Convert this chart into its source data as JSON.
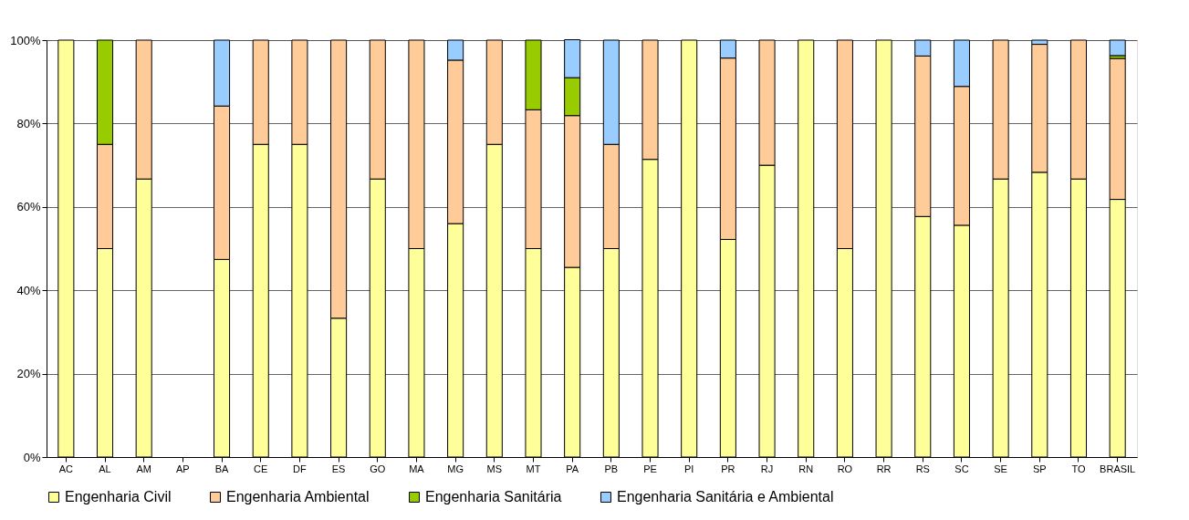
{
  "chart_data": {
    "type": "bar",
    "stacked": true,
    "categories": [
      "AC",
      "AL",
      "AM",
      "AP",
      "BA",
      "CE",
      "DF",
      "ES",
      "GO",
      "MA",
      "MG",
      "MS",
      "MT",
      "PA",
      "PB",
      "PE",
      "PI",
      "PR",
      "RJ",
      "RN",
      "RO",
      "RR",
      "RS",
      "SC",
      "SE",
      "SP",
      "TO",
      "BRASIL"
    ],
    "series": [
      {
        "name": "Engenharia Civil",
        "color": "#ffff99",
        "values": [
          100,
          50,
          66.7,
          null,
          47.4,
          75,
          75,
          33.3,
          66.7,
          50,
          56,
          75,
          50,
          45.5,
          50,
          71.4,
          100,
          52.2,
          70,
          100,
          50,
          100,
          57.7,
          55.6,
          66.7,
          68.3,
          66.7,
          61.8
        ]
      },
      {
        "name": "Engenharia Ambiental",
        "color": "#ffcc99",
        "values": [
          0,
          25,
          33.3,
          null,
          36.8,
          25,
          25,
          66.7,
          33.3,
          50,
          39.2,
          25,
          33.3,
          36.4,
          25,
          28.6,
          0,
          43.5,
          30,
          0,
          50,
          0,
          38.5,
          33.3,
          33.3,
          30.7,
          33.3,
          33.8
        ]
      },
      {
        "name": "Engenharia Sanitária",
        "color": "#99cc00",
        "values": [
          0,
          25,
          0,
          null,
          0,
          0,
          0,
          0,
          0,
          0,
          0,
          0,
          16.7,
          9.1,
          0,
          0,
          0,
          0,
          0,
          0,
          0,
          0,
          0,
          0,
          0,
          0,
          0,
          0.7
        ]
      },
      {
        "name": "Engenharia Sanitária e Ambiental",
        "color": "#99ccff",
        "values": [
          0,
          0,
          0,
          null,
          15.8,
          0,
          0,
          0,
          0,
          0,
          4.8,
          0,
          0,
          9.1,
          25,
          0,
          0,
          4.3,
          0,
          0,
          0,
          0,
          3.8,
          11.1,
          0,
          1.0,
          0,
          3.7
        ]
      }
    ],
    "ylim": [
      0,
      100
    ],
    "yticks": [
      {
        "value": 0,
        "label": "0%"
      },
      {
        "value": 20,
        "label": "20%"
      },
      {
        "value": 40,
        "label": "40%"
      },
      {
        "value": 60,
        "label": "60%"
      },
      {
        "value": 80,
        "label": "80%"
      },
      {
        "value": 100,
        "label": "100%"
      }
    ],
    "grid": "y",
    "legend": "bottom"
  }
}
